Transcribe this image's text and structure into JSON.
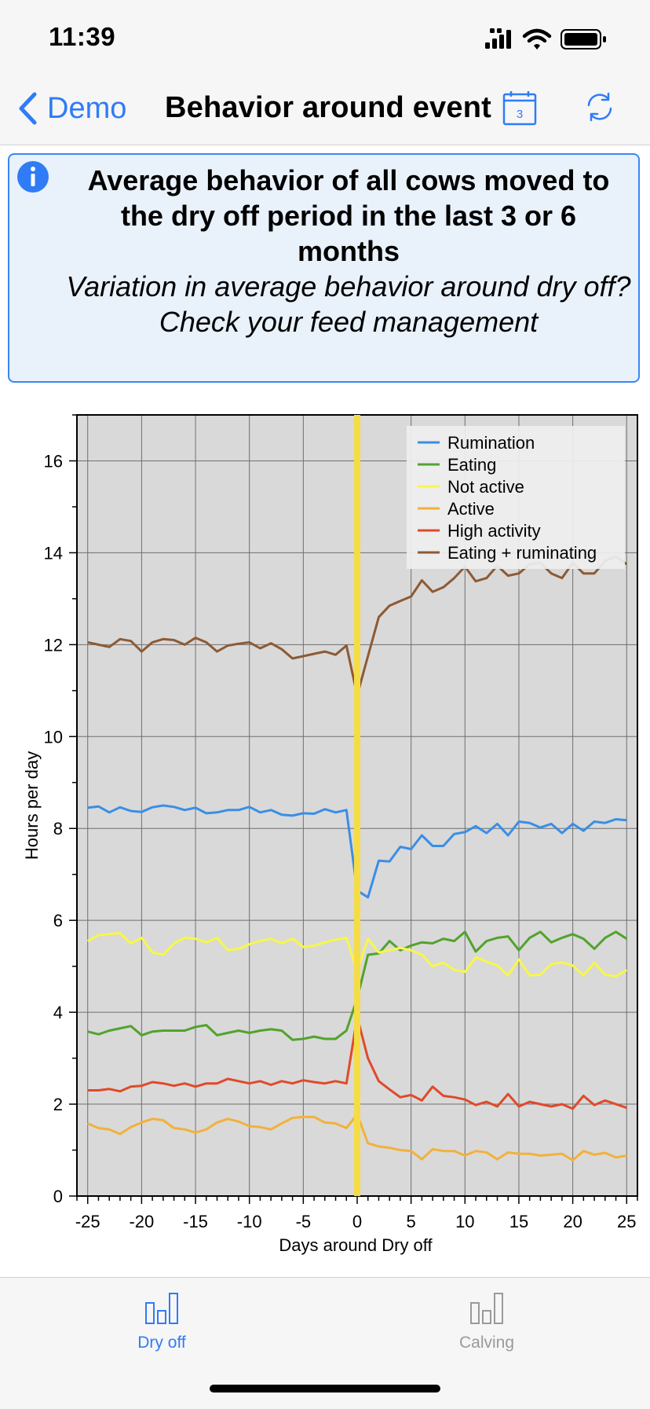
{
  "status": {
    "time": "11:39"
  },
  "nav": {
    "back_label": "Demo",
    "title": "Behavior around event",
    "calendar_day": "3"
  },
  "info": {
    "title": "Average behavior of all cows moved to the dry off period in the last 3 or 6 months",
    "line2": "Variation in average behavior around dry off?",
    "line3": "Check your feed management"
  },
  "colors": {
    "accent": "#2f7cf6",
    "chart_bg": "#d9d9d9",
    "event_line": "#f5dc45",
    "tab_inactive": "#9a9a9a"
  },
  "chart_data": {
    "type": "line",
    "xlabel": "Days around Dry off",
    "ylabel": "Hours per day",
    "xlim": [
      -26,
      26
    ],
    "ylim": [
      0,
      17
    ],
    "xticks": [
      -25,
      -20,
      -15,
      -10,
      -5,
      0,
      5,
      10,
      15,
      20,
      25
    ],
    "yticks": [
      0,
      2,
      4,
      6,
      8,
      10,
      12,
      14,
      16
    ],
    "event_x": 0,
    "grid": true,
    "legend_position": "top-right",
    "x": [
      -25,
      -24,
      -23,
      -22,
      -21,
      -20,
      -19,
      -18,
      -17,
      -16,
      -15,
      -14,
      -13,
      -12,
      -11,
      -10,
      -9,
      -8,
      -7,
      -6,
      -5,
      -4,
      -3,
      -2,
      -1,
      0,
      1,
      2,
      3,
      4,
      5,
      6,
      7,
      8,
      9,
      10,
      11,
      12,
      13,
      14,
      15,
      16,
      17,
      18,
      19,
      20,
      21,
      22,
      23,
      24,
      25
    ],
    "series": [
      {
        "name": "Rumination",
        "color": "#3a8ee6",
        "values": [
          8.45,
          8.48,
          8.35,
          8.46,
          8.38,
          8.36,
          8.46,
          8.5,
          8.47,
          8.4,
          8.45,
          8.33,
          8.35,
          8.4,
          8.4,
          8.47,
          8.35,
          8.4,
          8.3,
          8.28,
          8.33,
          8.32,
          8.42,
          8.35,
          8.4,
          6.65,
          6.5,
          7.3,
          7.28,
          7.6,
          7.55,
          7.85,
          7.62,
          7.62,
          7.88,
          7.92,
          8.05,
          7.9,
          8.1,
          7.85,
          8.15,
          8.12,
          8.02,
          8.1,
          7.9,
          8.1,
          7.95,
          8.15,
          8.12,
          8.2,
          8.18
        ]
      },
      {
        "name": "Eating",
        "color": "#52a32c",
        "values": [
          3.58,
          3.52,
          3.6,
          3.65,
          3.7,
          3.5,
          3.58,
          3.6,
          3.6,
          3.6,
          3.68,
          3.72,
          3.5,
          3.55,
          3.6,
          3.55,
          3.6,
          3.63,
          3.6,
          3.4,
          3.42,
          3.47,
          3.42,
          3.42,
          3.6,
          4.3,
          5.25,
          5.28,
          5.55,
          5.35,
          5.45,
          5.52,
          5.5,
          5.6,
          5.55,
          5.75,
          5.32,
          5.55,
          5.62,
          5.65,
          5.35,
          5.62,
          5.75,
          5.52,
          5.62,
          5.7,
          5.6,
          5.38,
          5.62,
          5.75,
          5.6
        ]
      },
      {
        "name": "Not active",
        "color": "#f7f74a",
        "values": [
          5.55,
          5.68,
          5.7,
          5.72,
          5.5,
          5.62,
          5.3,
          5.25,
          5.5,
          5.62,
          5.6,
          5.52,
          5.62,
          5.35,
          5.38,
          5.48,
          5.55,
          5.6,
          5.5,
          5.6,
          5.42,
          5.45,
          5.52,
          5.58,
          5.62,
          4.9,
          5.6,
          5.3,
          5.35,
          5.4,
          5.35,
          5.25,
          5.0,
          5.08,
          4.92,
          4.88,
          5.2,
          5.1,
          5.02,
          4.8,
          5.15,
          4.8,
          4.82,
          5.05,
          5.08,
          5.02,
          4.8,
          5.08,
          4.82,
          4.78,
          4.92
        ]
      },
      {
        "name": "Active",
        "color": "#f2b13c",
        "values": [
          1.58,
          1.48,
          1.45,
          1.35,
          1.5,
          1.6,
          1.68,
          1.65,
          1.48,
          1.45,
          1.38,
          1.45,
          1.6,
          1.68,
          1.62,
          1.52,
          1.5,
          1.45,
          1.58,
          1.7,
          1.72,
          1.72,
          1.6,
          1.58,
          1.48,
          1.78,
          1.15,
          1.08,
          1.05,
          1.0,
          0.98,
          0.8,
          1.02,
          0.98,
          0.98,
          0.88,
          0.98,
          0.95,
          0.8,
          0.95,
          0.92,
          0.92,
          0.88,
          0.9,
          0.92,
          0.78,
          0.98,
          0.9,
          0.94,
          0.84,
          0.88
        ]
      },
      {
        "name": "High activity",
        "color": "#e04a2a",
        "values": [
          2.3,
          2.3,
          2.33,
          2.28,
          2.38,
          2.4,
          2.48,
          2.45,
          2.4,
          2.45,
          2.38,
          2.45,
          2.45,
          2.55,
          2.5,
          2.45,
          2.5,
          2.42,
          2.5,
          2.45,
          2.52,
          2.48,
          2.45,
          2.5,
          2.45,
          3.9,
          3.0,
          2.5,
          2.32,
          2.15,
          2.2,
          2.08,
          2.38,
          2.18,
          2.15,
          2.1,
          1.98,
          2.05,
          1.95,
          2.22,
          1.95,
          2.05,
          2.0,
          1.95,
          2.0,
          1.9,
          2.18,
          1.98,
          2.08,
          2.0,
          1.92
        ]
      },
      {
        "name": "Eating + ruminating",
        "color": "#8d5a34",
        "values": [
          12.05,
          12.0,
          11.95,
          12.12,
          12.08,
          11.85,
          12.05,
          12.12,
          12.1,
          12.0,
          12.15,
          12.05,
          11.85,
          11.98,
          12.02,
          12.05,
          11.92,
          12.03,
          11.9,
          11.7,
          11.75,
          11.8,
          11.85,
          11.78,
          11.98,
          10.9,
          11.75,
          12.6,
          12.85,
          12.95,
          13.05,
          13.4,
          13.15,
          13.25,
          13.45,
          13.7,
          13.38,
          13.45,
          13.72,
          13.5,
          13.55,
          13.75,
          13.78,
          13.55,
          13.45,
          13.78,
          13.55,
          13.55,
          13.82,
          13.92,
          13.75
        ]
      }
    ]
  },
  "tabs": [
    {
      "label": "Dry off",
      "active": true
    },
    {
      "label": "Calving",
      "active": false
    }
  ]
}
